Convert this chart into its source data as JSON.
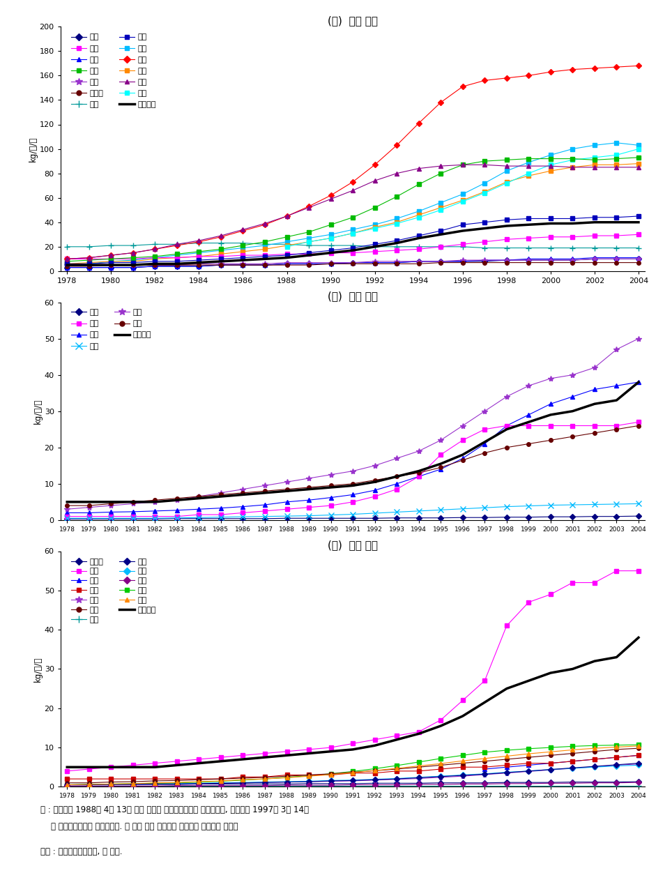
{
  "title_a": "(ㄱ)  중국 동부",
  "title_b": "(ㄴ)  중국 중부",
  "title_c": "(ㄷ)  중국 남부",
  "ylabel": "kg/인/연",
  "years_a": [
    1978,
    1979,
    1980,
    1981,
    1982,
    1983,
    1984,
    1985,
    1986,
    1987,
    1988,
    1989,
    1990,
    1991,
    1992,
    1993,
    1994,
    1995,
    1996,
    1997,
    1998,
    1999,
    2000,
    2001,
    2002,
    2003,
    2004
  ],
  "years_bc": [
    1978,
    1979,
    1980,
    1981,
    1982,
    1983,
    1984,
    1985,
    1986,
    1987,
    1988,
    1989,
    1990,
    1991,
    1992,
    1993,
    1994,
    1995,
    1996,
    1997,
    1998,
    1999,
    2000,
    2001,
    2002,
    2003,
    2004
  ],
  "panel_a": {
    "북경": {
      "color": "#000080",
      "marker": "D",
      "data": [
        3,
        3,
        3,
        3,
        4,
        4,
        4,
        5,
        5,
        5,
        6,
        6,
        6,
        7,
        7,
        7,
        8,
        8,
        8,
        8,
        9,
        9,
        9,
        9,
        10,
        10,
        10
      ]
    },
    "하북": {
      "color": "#0000FF",
      "marker": "^",
      "data": [
        3,
        3,
        3,
        3,
        4,
        4,
        4,
        5,
        5,
        5,
        6,
        6,
        6,
        7,
        7,
        7,
        8,
        8,
        8,
        9,
        9,
        10,
        10,
        10,
        11,
        11,
        11
      ]
    },
    "길림": {
      "color": "#9933CC",
      "marker": "*",
      "data": [
        5,
        5,
        5,
        5,
        5,
        5,
        6,
        6,
        6,
        6,
        7,
        7,
        7,
        7,
        8,
        8,
        8,
        8,
        9,
        9,
        9,
        9,
        9,
        9,
        10,
        10,
        10
      ]
    },
    "상해": {
      "color": "#009999",
      "marker": "+",
      "data": [
        20,
        20,
        21,
        21,
        22,
        22,
        23,
        23,
        23,
        22,
        22,
        21,
        21,
        21,
        20,
        20,
        20,
        20,
        20,
        19,
        19,
        19,
        19,
        19,
        19,
        19,
        19
      ]
    },
    "절강": {
      "color": "#00BBFF",
      "marker": "s",
      "data": [
        5,
        6,
        8,
        9,
        11,
        13,
        15,
        17,
        19,
        21,
        24,
        27,
        30,
        34,
        38,
        43,
        49,
        56,
        63,
        72,
        82,
        89,
        95,
        100,
        103,
        105,
        103
      ]
    },
    "산동": {
      "color": "#FF8800",
      "marker": "s",
      "data": [
        6,
        7,
        8,
        8,
        10,
        11,
        12,
        14,
        16,
        18,
        21,
        24,
        27,
        31,
        36,
        40,
        46,
        52,
        58,
        65,
        73,
        78,
        82,
        85,
        87,
        87,
        88
      ]
    },
    "해남": {
      "color": "#00FFFF",
      "marker": "s",
      "data": [
        null,
        null,
        null,
        null,
        null,
        null,
        null,
        null,
        null,
        null,
        20,
        24,
        27,
        31,
        35,
        39,
        44,
        50,
        57,
        64,
        72,
        80,
        87,
        91,
        93,
        95,
        100
      ]
    },
    "천진": {
      "color": "#FF00FF",
      "marker": "s",
      "data": [
        10,
        10,
        10,
        10,
        11,
        11,
        12,
        12,
        13,
        13,
        14,
        14,
        15,
        15,
        16,
        17,
        18,
        20,
        22,
        24,
        26,
        27,
        28,
        28,
        29,
        29,
        30
      ]
    },
    "요령": {
      "color": "#00BB00",
      "marker": "s",
      "data": [
        8,
        9,
        10,
        11,
        12,
        14,
        16,
        18,
        21,
        24,
        28,
        32,
        38,
        44,
        52,
        61,
        71,
        80,
        87,
        90,
        91,
        92,
        92,
        92,
        91,
        92,
        93
      ]
    },
    "흑룡강": {
      "color": "#660000",
      "marker": "o",
      "data": [
        4,
        4,
        5,
        5,
        5,
        5,
        5,
        5,
        5,
        5,
        5,
        5,
        6,
        6,
        6,
        6,
        6,
        7,
        7,
        7,
        7,
        7,
        7,
        7,
        7,
        7,
        7
      ]
    },
    "강서_동": {
      "color": "#0000BB",
      "marker": "s",
      "data": [
        6,
        6,
        7,
        7,
        8,
        8,
        9,
        10,
        11,
        12,
        13,
        15,
        17,
        19,
        22,
        25,
        29,
        33,
        38,
        40,
        42,
        43,
        43,
        43,
        44,
        44,
        45
      ]
    },
    "북건": {
      "color": "#FF0000",
      "marker": "D",
      "data": [
        10,
        11,
        13,
        15,
        18,
        21,
        24,
        28,
        33,
        38,
        45,
        53,
        62,
        73,
        87,
        103,
        121,
        138,
        151,
        156,
        158,
        160,
        163,
        165,
        166,
        167,
        168
      ]
    },
    "광동": {
      "color": "#880088",
      "marker": "^",
      "data": [
        10,
        11,
        13,
        15,
        18,
        22,
        25,
        29,
        34,
        39,
        45,
        52,
        59,
        66,
        74,
        80,
        84,
        86,
        87,
        87,
        86,
        86,
        86,
        85,
        85,
        85,
        85
      ]
    },
    "전국평균": {
      "color": "#000000",
      "marker": null,
      "lw": 2.5,
      "data": [
        5,
        5,
        5,
        5,
        6,
        6,
        7,
        8,
        9,
        10,
        11,
        13,
        15,
        17,
        20,
        23,
        27,
        30,
        33,
        35,
        37,
        38,
        39,
        39,
        40,
        40,
        40
      ]
    }
  },
  "panel_a_legend": [
    {
      "label": "북경",
      "color": "#000080",
      "marker": "D"
    },
    {
      "label": "천진",
      "color": "#FF00FF",
      "marker": "s"
    },
    {
      "label": "하북",
      "color": "#0000FF",
      "marker": "^"
    },
    {
      "label": "요령",
      "color": "#00BB00",
      "marker": "s"
    },
    {
      "label": "길림",
      "color": "#9933CC",
      "marker": "*"
    },
    {
      "label": "흑룡강",
      "color": "#660000",
      "marker": "o"
    },
    {
      "label": "상해",
      "color": "#009999",
      "marker": "+"
    },
    {
      "label": "강서",
      "color": "#0000BB",
      "marker": "s"
    },
    {
      "label": "절강",
      "color": "#00BBFF",
      "marker": "s"
    },
    {
      "label": "북건",
      "color": "#FF0000",
      "marker": "D"
    },
    {
      "label": "산동",
      "color": "#FF8800",
      "marker": "s"
    },
    {
      "label": "광동",
      "color": "#880088",
      "marker": "^"
    },
    {
      "label": "해남",
      "color": "#00FFFF",
      "marker": "s"
    },
    {
      "label": "전국평균",
      "color": "#000000",
      "marker": null,
      "lw": 2.5
    }
  ],
  "panel_b": {
    "산서": {
      "color": "#000080",
      "marker": "D",
      "data": [
        0.3,
        0.3,
        0.3,
        0.3,
        0.3,
        0.4,
        0.4,
        0.4,
        0.4,
        0.4,
        0.5,
        0.5,
        0.5,
        0.5,
        0.5,
        0.6,
        0.6,
        0.6,
        0.7,
        0.7,
        0.8,
        0.8,
        0.9,
        0.9,
        1.0,
        1.0,
        1.1
      ]
    },
    "강서": {
      "color": "#0000FF",
      "marker": "^",
      "data": [
        2,
        2,
        2.2,
        2.3,
        2.5,
        2.7,
        3.0,
        3.3,
        3.7,
        4.2,
        5.0,
        5.5,
        6.2,
        7.0,
        8.2,
        10,
        12,
        14,
        17,
        21,
        26,
        29,
        32,
        34,
        36,
        37,
        38
      ]
    },
    "호북": {
      "color": "#9933CC",
      "marker": "*",
      "data": [
        3,
        3.5,
        4,
        4.5,
        5,
        5.5,
        6.5,
        7.5,
        8.5,
        9.5,
        10.5,
        11.5,
        12.5,
        13.5,
        15,
        17,
        19,
        22,
        26,
        30,
        34,
        37,
        39,
        40,
        42,
        47,
        50
      ]
    },
    "전국평균": {
      "color": "#000000",
      "marker": null,
      "lw": 2.5,
      "data": [
        5,
        5,
        5,
        5,
        5,
        5.5,
        6,
        6.5,
        7,
        7.5,
        8,
        8.5,
        9,
        9.5,
        10.5,
        12,
        13.5,
        15.5,
        18,
        21.5,
        25,
        27,
        29,
        30,
        32,
        33,
        38
      ]
    },
    "안휘": {
      "color": "#FF00FF",
      "marker": "s",
      "data": [
        1,
        1,
        1,
        1,
        1,
        1,
        1.5,
        1.5,
        2,
        2.5,
        3,
        3.5,
        4,
        5,
        6.5,
        8.5,
        12,
        18,
        22,
        25,
        26,
        26,
        26,
        26,
        26,
        26,
        27
      ]
    },
    "하남": {
      "color": "#00BBFF",
      "marker": "x",
      "data": [
        0.5,
        0.5,
        0.5,
        0.5,
        0.5,
        0.6,
        0.7,
        0.8,
        0.9,
        1.0,
        1.1,
        1.2,
        1.4,
        1.6,
        1.9,
        2.2,
        2.5,
        2.8,
        3.1,
        3.4,
        3.7,
        3.9,
        4.1,
        4.2,
        4.3,
        4.4,
        4.5
      ]
    },
    "호남": {
      "color": "#660000",
      "marker": "o",
      "data": [
        4,
        4,
        4.5,
        5,
        5.5,
        6,
        6.5,
        7,
        7.5,
        8,
        8.5,
        9,
        9.5,
        10,
        11,
        12,
        13,
        14.5,
        16.5,
        18.5,
        20,
        21,
        22,
        23,
        24,
        25,
        26
      ]
    }
  },
  "panel_b_legend": [
    {
      "label": "산서",
      "color": "#000080",
      "marker": "D"
    },
    {
      "label": "안휘",
      "color": "#FF00FF",
      "marker": "s"
    },
    {
      "label": "강서",
      "color": "#0000FF",
      "marker": "^"
    },
    {
      "label": "하남",
      "color": "#00BBFF",
      "marker": "x"
    },
    {
      "label": "호북",
      "color": "#9933CC",
      "marker": "*"
    },
    {
      "label": "호남",
      "color": "#660000",
      "marker": "o"
    },
    {
      "label": "전국평균",
      "color": "#000000",
      "marker": null,
      "lw": 2.5
    }
  ],
  "panel_c": {
    "내몽고": {
      "color": "#000080",
      "marker": "D",
      "data": [
        0.5,
        0.5,
        0.5,
        0.6,
        0.6,
        0.6,
        0.7,
        0.7,
        0.7,
        0.7,
        0.7,
        0.8,
        0.8,
        0.8,
        0.9,
        0.9,
        0.9,
        1.0,
        1.0,
        1.0,
        1.1,
        1.1,
        1.1,
        1.2,
        1.2,
        1.2,
        1.3
      ]
    },
    "중경": {
      "color": "#0000FF",
      "marker": "^",
      "data": [
        null,
        null,
        null,
        null,
        null,
        null,
        null,
        null,
        null,
        null,
        null,
        null,
        null,
        null,
        null,
        null,
        null,
        null,
        null,
        4.5,
        5.0,
        5.5,
        6.0,
        6.5,
        7.0,
        7.5,
        8.0
      ]
    },
    "귀주": {
      "color": "#9933CC",
      "marker": "*",
      "data": [
        0.5,
        0.5,
        0.6,
        0.6,
        0.7,
        0.7,
        0.8,
        0.9,
        1.0,
        1.1,
        1.2,
        1.3,
        1.4,
        1.5,
        1.7,
        1.9,
        2.1,
        2.4,
        2.7,
        3.1,
        3.5,
        3.9,
        4.3,
        4.7,
        5.1,
        5.5,
        5.8
      ]
    },
    "서장": {
      "color": "#009999",
      "marker": "+",
      "data": [
        0.2,
        0.2,
        0.2,
        0.2,
        0.2,
        0.2,
        0.2,
        0.2,
        0.2,
        0.2,
        0.2,
        0.2,
        0.2,
        0.2,
        0.2,
        0.2,
        0.2,
        0.2,
        0.2,
        0.2,
        0.2,
        0.2,
        0.2,
        0.2,
        0.2,
        0.2,
        0.2
      ]
    },
    "감숙": {
      "color": "#00BBFF",
      "marker": "D",
      "data": [
        0.5,
        0.6,
        0.6,
        0.7,
        0.7,
        0.8,
        0.9,
        1.0,
        1.1,
        1.2,
        1.3,
        1.4,
        1.6,
        1.7,
        1.9,
        2.1,
        2.4,
        2.7,
        3.0,
        3.3,
        3.7,
        4.0,
        4.4,
        4.7,
        5.0,
        5.3,
        5.5
      ]
    },
    "영하": {
      "color": "#00CC00",
      "marker": "s",
      "data": [
        0.5,
        0.6,
        0.7,
        0.8,
        0.9,
        1.0,
        1.2,
        1.4,
        1.7,
        2.0,
        2.4,
        2.8,
        3.3,
        3.9,
        4.6,
        5.4,
        6.3,
        7.2,
        8.0,
        8.8,
        9.3,
        9.7,
        10,
        10.3,
        10.5,
        10.6,
        10.7
      ]
    },
    "전국평균": {
      "color": "#000000",
      "marker": null,
      "lw": 2.5,
      "data": [
        5,
        5,
        5,
        5,
        5,
        5.5,
        6,
        6.5,
        7,
        7.5,
        8,
        8.5,
        9,
        9.5,
        10.5,
        12,
        13.5,
        15.5,
        18,
        21.5,
        25,
        27,
        29,
        30,
        32,
        33,
        38
      ]
    },
    "광서": {
      "color": "#FF00FF",
      "marker": "s",
      "data": [
        4,
        4.5,
        5,
        5.5,
        6,
        6.5,
        7,
        7.5,
        8,
        8.5,
        9,
        9.5,
        10,
        11,
        12,
        13,
        14,
        17,
        22,
        27,
        41,
        47,
        49,
        52,
        52,
        55,
        55
      ]
    },
    "사천": {
      "color": "#CC0000",
      "marker": "s",
      "data": [
        2,
        2,
        2,
        2,
        2,
        2,
        2,
        2,
        2.5,
        2.5,
        3,
        3,
        3,
        3.5,
        3.5,
        4,
        4,
        4.5,
        5,
        5,
        5.5,
        6,
        6,
        6.5,
        7,
        7.5,
        8
      ]
    },
    "운남": {
      "color": "#660000",
      "marker": "o",
      "data": [
        1,
        1,
        1.2,
        1.3,
        1.5,
        1.6,
        1.8,
        2.0,
        2.2,
        2.4,
        2.7,
        3.0,
        3.3,
        3.7,
        4.1,
        4.5,
        5.0,
        5.5,
        6.0,
        6.5,
        7.0,
        7.5,
        8.0,
        8.5,
        9.0,
        9.5,
        9.8
      ]
    },
    "협서": {
      "color": "#000088",
      "marker": "D",
      "data": [
        0.5,
        0.5,
        0.6,
        0.6,
        0.7,
        0.7,
        0.8,
        0.9,
        1.0,
        1.1,
        1.2,
        1.3,
        1.5,
        1.6,
        1.8,
        2.0,
        2.3,
        2.6,
        2.9,
        3.2,
        3.6,
        4.0,
        4.4,
        4.8,
        5.2,
        5.6,
        6.0
      ]
    },
    "청해": {
      "color": "#880088",
      "marker": "D",
      "data": [
        0.2,
        0.2,
        0.2,
        0.2,
        0.2,
        0.3,
        0.3,
        0.3,
        0.3,
        0.3,
        0.4,
        0.4,
        0.4,
        0.5,
        0.5,
        0.5,
        0.6,
        0.6,
        0.7,
        0.7,
        0.8,
        0.8,
        0.9,
        0.9,
        1.0,
        1.0,
        1.1
      ]
    },
    "신강": {
      "color": "#FF8800",
      "marker": "^",
      "data": [
        0.5,
        0.6,
        0.7,
        0.8,
        1.0,
        1.1,
        1.3,
        1.5,
        1.8,
        2.0,
        2.3,
        2.7,
        3.1,
        3.6,
        4.1,
        4.7,
        5.3,
        5.9,
        6.6,
        7.2,
        7.8,
        8.4,
        8.9,
        9.4,
        9.8,
        10.1,
        10.4
      ]
    }
  },
  "panel_c_legend": [
    {
      "label": "내몽고",
      "color": "#000080",
      "marker": "D"
    },
    {
      "label": "광서",
      "color": "#FF00FF",
      "marker": "s"
    },
    {
      "label": "중경",
      "color": "#0000FF",
      "marker": "^"
    },
    {
      "label": "사천",
      "color": "#CC0000",
      "marker": "s"
    },
    {
      "label": "귀주",
      "color": "#9933CC",
      "marker": "*"
    },
    {
      "label": "운남",
      "color": "#660000",
      "marker": "o"
    },
    {
      "label": "서장",
      "color": "#009999",
      "marker": "+"
    },
    {
      "label": "협서",
      "color": "#000088",
      "marker": "D"
    },
    {
      "label": "감숙",
      "color": "#00BBFF",
      "marker": "D"
    },
    {
      "label": "청해",
      "color": "#880088",
      "marker": "D"
    },
    {
      "label": "영하",
      "color": "#00CC00",
      "marker": "s"
    },
    {
      "label": "신강",
      "color": "#FF8800",
      "marker": "^"
    },
    {
      "label": "전국평균",
      "color": "#000000",
      "marker": null,
      "lw": 2.5
    }
  ],
  "note_line1": "주 : 해남성은 1988년 4월 13일 중국 최대의 경제특구성으로 설립되었고, 중경시는 1997년 3월 14일",
  "note_line2": "    에 중앙직할시로서 설립되었음. 이 전은 각각 광동성과 사천성에 포함되어 있었음",
  "source": "자료 : 「중국통계연감」, 각 연도."
}
